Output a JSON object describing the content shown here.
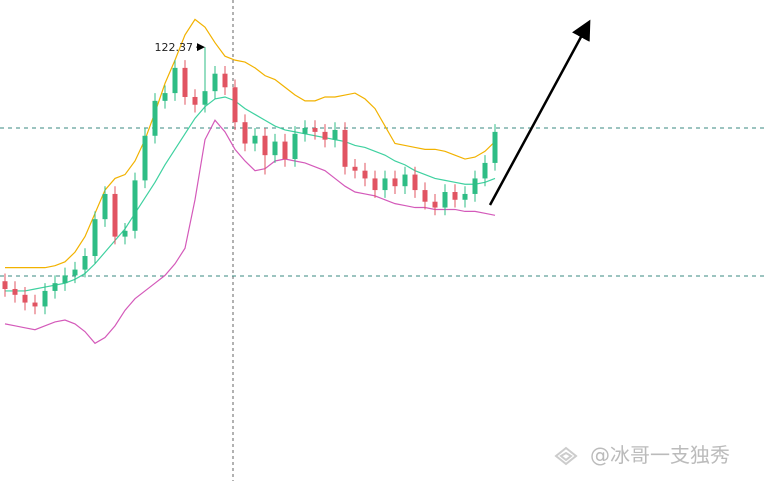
{
  "chart_data": {
    "type": "candlestick",
    "ylim": [
      100,
      124.8
    ],
    "candles": {
      "open": [
        110.3,
        109.9,
        109.6,
        109.2,
        109.0,
        109.8,
        110.2,
        110.6,
        110.9,
        111.6,
        113.5,
        114.8,
        112.6,
        112.9,
        115.5,
        117.8,
        119.6,
        120.0,
        121.3,
        119.8,
        119.4,
        120.1,
        121.0,
        120.3,
        118.5,
        117.4,
        117.8,
        116.8,
        117.5,
        116.6,
        117.9,
        118.2,
        118.0,
        117.6,
        118.1,
        116.2,
        116.0,
        115.6,
        115.0,
        115.6,
        115.2,
        115.8,
        115.0,
        114.4,
        114.1,
        114.9,
        114.5,
        114.8,
        115.6,
        116.4
      ],
      "high": [
        110.7,
        110.3,
        110.0,
        109.6,
        110.2,
        110.6,
        111.0,
        111.3,
        112.0,
        113.9,
        115.2,
        115.2,
        113.3,
        115.9,
        118.2,
        120.0,
        120.4,
        121.7,
        121.7,
        120.2,
        122.37,
        121.4,
        121.4,
        120.7,
        118.9,
        118.2,
        118.2,
        117.9,
        117.9,
        118.3,
        118.6,
        118.6,
        118.4,
        118.5,
        118.5,
        116.6,
        116.4,
        116.0,
        116.0,
        116.0,
        116.2,
        116.2,
        115.4,
        114.8,
        115.3,
        115.3,
        115.2,
        116.0,
        116.8,
        118.4
      ],
      "low": [
        109.5,
        109.2,
        108.8,
        108.6,
        108.6,
        109.4,
        109.8,
        110.2,
        110.5,
        111.2,
        113.1,
        112.2,
        112.2,
        112.5,
        115.1,
        117.4,
        119.2,
        119.6,
        119.4,
        119.0,
        119.0,
        119.7,
        119.9,
        118.1,
        117.0,
        117.0,
        115.8,
        116.4,
        116.2,
        116.2,
        117.5,
        117.6,
        117.2,
        117.2,
        115.8,
        115.6,
        115.2,
        114.6,
        114.6,
        114.8,
        114.8,
        114.6,
        114.0,
        113.7,
        113.7,
        114.1,
        114.1,
        114.4,
        115.2,
        116.0
      ],
      "close": [
        109.9,
        109.6,
        109.2,
        109.0,
        109.8,
        110.2,
        110.6,
        110.9,
        111.6,
        113.5,
        114.8,
        112.6,
        112.9,
        115.5,
        117.8,
        119.6,
        120.0,
        121.3,
        119.8,
        119.4,
        120.1,
        121.0,
        120.3,
        118.5,
        117.4,
        117.8,
        116.8,
        117.5,
        116.6,
        117.9,
        118.2,
        118.0,
        117.6,
        118.1,
        116.2,
        116.0,
        115.6,
        115.0,
        115.6,
        115.2,
        115.8,
        115.0,
        114.4,
        114.1,
        114.9,
        114.5,
        114.8,
        115.6,
        116.4,
        118.0
      ],
      "up_color": "#2ebd85",
      "down_color": "#e15462"
    },
    "series": [
      {
        "color": "#f2b200",
        "values": [
          111.0,
          111.0,
          111.0,
          111.0,
          111.0,
          111.1,
          111.3,
          111.8,
          112.6,
          113.8,
          115.0,
          115.6,
          115.8,
          116.5,
          117.6,
          119.0,
          120.5,
          121.7,
          123.0,
          123.8,
          123.4,
          122.6,
          121.9,
          121.7,
          121.6,
          121.3,
          120.9,
          120.7,
          120.3,
          119.9,
          119.6,
          119.6,
          119.8,
          119.8,
          119.9,
          120.0,
          119.7,
          119.2,
          118.3,
          117.4,
          117.3,
          117.2,
          117.1,
          117.1,
          117.0,
          116.8,
          116.6,
          116.7,
          117.0,
          117.5
        ]
      },
      {
        "color": "#3fd1a0",
        "values": [
          109.8,
          109.8,
          109.8,
          109.9,
          110.0,
          110.1,
          110.2,
          110.4,
          110.7,
          111.2,
          111.8,
          112.4,
          113.0,
          113.8,
          114.6,
          115.4,
          116.3,
          117.1,
          117.9,
          118.7,
          119.3,
          119.7,
          119.8,
          119.6,
          119.2,
          118.9,
          118.6,
          118.3,
          118.1,
          118.0,
          117.9,
          117.8,
          117.7,
          117.6,
          117.5,
          117.3,
          117.2,
          117.0,
          116.8,
          116.5,
          116.3,
          116.0,
          115.8,
          115.6,
          115.5,
          115.4,
          115.3,
          115.3,
          115.4,
          115.6
        ]
      },
      {
        "color": "#d45aba",
        "values": [
          108.1,
          108.0,
          107.9,
          107.8,
          108.0,
          108.2,
          108.3,
          108.1,
          107.7,
          107.1,
          107.4,
          108.0,
          108.8,
          109.4,
          109.8,
          110.2,
          110.6,
          111.2,
          112.0,
          114.5,
          117.6,
          118.6,
          118.0,
          117.1,
          116.5,
          116.0,
          116.1,
          116.5,
          116.6,
          116.5,
          116.4,
          116.2,
          116.0,
          115.6,
          115.2,
          114.9,
          114.8,
          114.7,
          114.5,
          114.3,
          114.2,
          114.1,
          114.1,
          114.0,
          114.0,
          114.0,
          113.9,
          113.9,
          113.8,
          113.7
        ]
      }
    ],
    "hlines": [
      118.2,
      110.57
    ],
    "annotation_index": 20,
    "watermark": "@冰哥一支独秀"
  }
}
